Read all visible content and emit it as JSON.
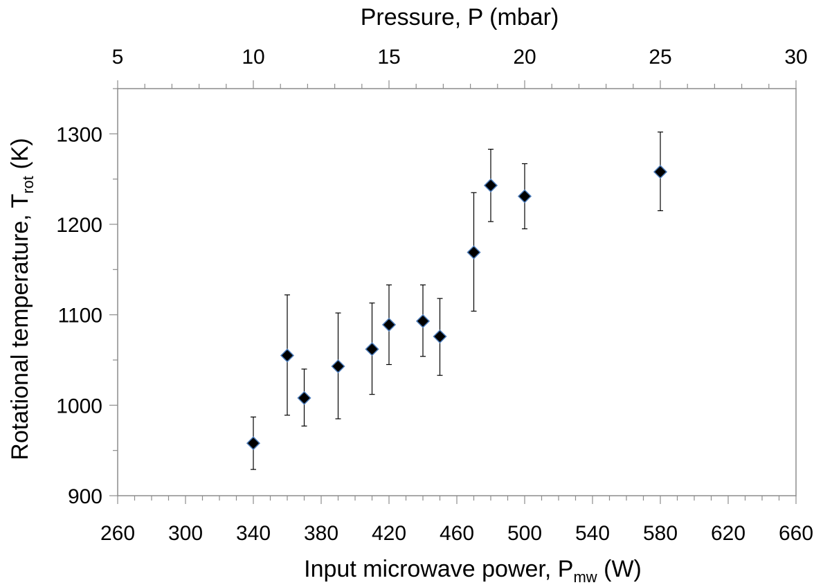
{
  "chart_data": {
    "type": "scatter",
    "marker": "diamond",
    "marker_color": "#000000",
    "marker_edge_color": "#4a7ab8",
    "grid": false,
    "xlabel": "Input microwave power, ",
    "xlabel_symbol": "P",
    "xlabel_sub": "mw",
    "xlabel_unit": " (W)",
    "ylabel": "Rotational temperature, ",
    "ylabel_symbol": "T",
    "ylabel_sub": "rot",
    "ylabel_unit": " (K)",
    "x2label": "Pressure, P (mbar)",
    "xlim": [
      260,
      660
    ],
    "ylim": [
      900,
      1350
    ],
    "x2lim": [
      5,
      30
    ],
    "x_ticks": [
      260,
      300,
      340,
      380,
      420,
      460,
      500,
      540,
      580,
      620,
      660
    ],
    "y_ticks": [
      900,
      1000,
      1100,
      1200,
      1300
    ],
    "x2_ticks": [
      5,
      10,
      15,
      20,
      25,
      30
    ],
    "points": [
      {
        "x": 340,
        "y": 958,
        "err_low": 929,
        "err_high": 987
      },
      {
        "x": 360,
        "y": 1055,
        "err_low": 989,
        "err_high": 1122
      },
      {
        "x": 370,
        "y": 1008,
        "err_low": 977,
        "err_high": 1040
      },
      {
        "x": 390,
        "y": 1043,
        "err_low": 985,
        "err_high": 1102
      },
      {
        "x": 410,
        "y": 1062,
        "err_low": 1012,
        "err_high": 1113
      },
      {
        "x": 420,
        "y": 1089,
        "err_low": 1045,
        "err_high": 1133
      },
      {
        "x": 440,
        "y": 1093,
        "err_low": 1054,
        "err_high": 1133
      },
      {
        "x": 450,
        "y": 1076,
        "err_low": 1033,
        "err_high": 1118
      },
      {
        "x": 470,
        "y": 1169,
        "err_low": 1104,
        "err_high": 1235
      },
      {
        "x": 480,
        "y": 1243,
        "err_low": 1203,
        "err_high": 1283
      },
      {
        "x": 500,
        "y": 1231,
        "err_low": 1195,
        "err_high": 1267
      },
      {
        "x": 580,
        "y": 1258,
        "err_low": 1215,
        "err_high": 1302
      }
    ]
  }
}
